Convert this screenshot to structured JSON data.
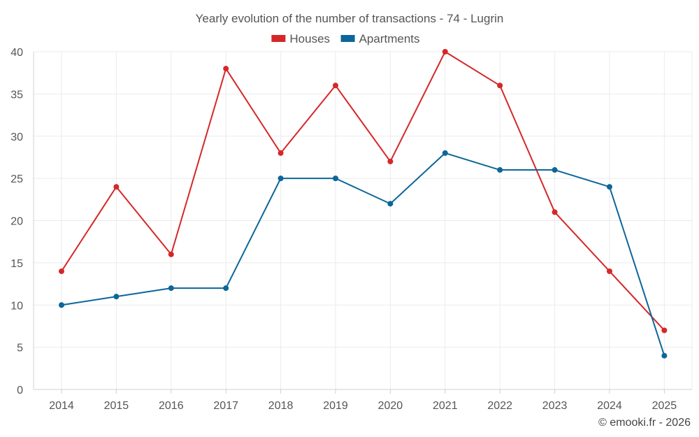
{
  "chart_data": {
    "type": "line",
    "title": "Yearly evolution of the number of transactions - 74 - Lugrin",
    "categories": [
      "2014",
      "2015",
      "2016",
      "2017",
      "2018",
      "2019",
      "2020",
      "2021",
      "2022",
      "2023",
      "2024",
      "2025"
    ],
    "series": [
      {
        "name": "Houses",
        "color": "#d62728",
        "values": [
          14,
          24,
          16,
          38,
          28,
          36,
          27,
          40,
          36,
          21,
          14,
          7
        ]
      },
      {
        "name": "Apartments",
        "color": "#0d6699",
        "values": [
          10,
          11,
          12,
          12,
          25,
          25,
          22,
          28,
          26,
          26,
          24,
          4
        ]
      }
    ],
    "ylim": [
      0,
      40
    ],
    "yticks": [
      0,
      5,
      10,
      15,
      20,
      25,
      30,
      35,
      40
    ],
    "xlabel": "",
    "ylabel": "",
    "grid": true,
    "legend_position": "top-center"
  },
  "credit": "© emooki.fr - 2026"
}
